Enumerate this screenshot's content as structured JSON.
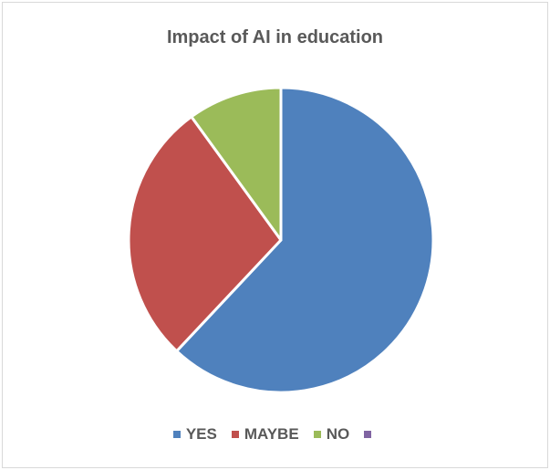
{
  "chart_data": {
    "type": "pie",
    "title": "Impact of AI in education",
    "categories": [
      "YES",
      "MAYBE",
      "NO",
      ""
    ],
    "values": [
      62,
      28,
      10,
      0
    ],
    "colors": [
      "#4f81bd",
      "#c0504d",
      "#9bbb59",
      "#8064a2"
    ],
    "legend_position": "bottom"
  }
}
